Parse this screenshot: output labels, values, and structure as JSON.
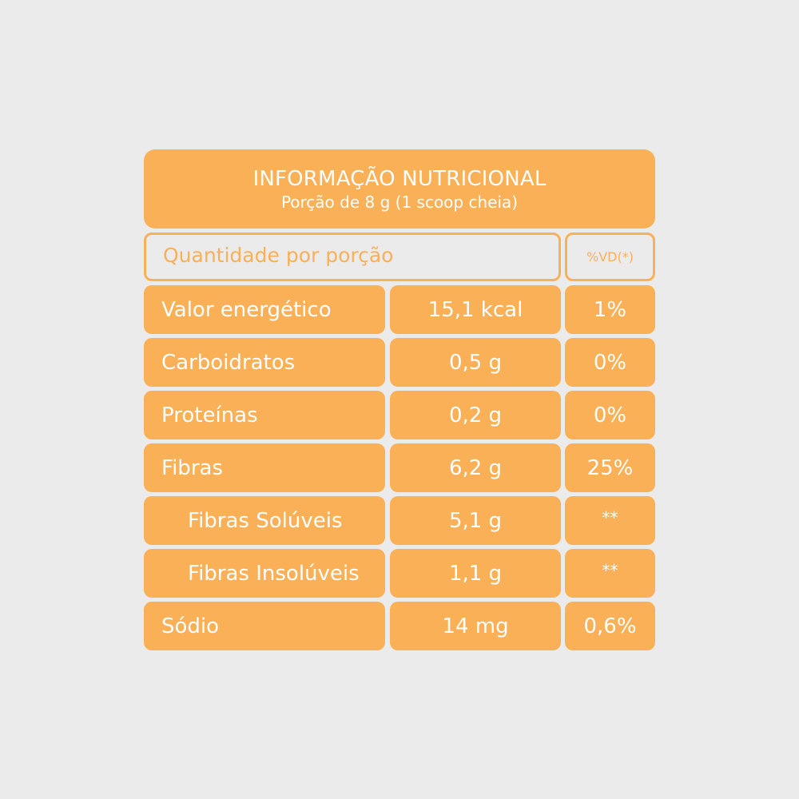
{
  "header": {
    "title": "INFORMAÇÃO NUTRICIONAL",
    "subtitle": "Porção de 8 g (1 scoop cheia)"
  },
  "columns": {
    "quantity": "Quantidade por porção",
    "daily_value": "%VD(*)"
  },
  "rows": [
    {
      "name": "Valor energético",
      "amount": "15,1 kcal",
      "dv": "1%"
    },
    {
      "name": "Carboidratos",
      "amount": "0,5 g",
      "dv": "0%"
    },
    {
      "name": "Proteínas",
      "amount": "0,2 g",
      "dv": "0%"
    },
    {
      "name": "Fibras",
      "amount": "6,2 g",
      "dv": "25%"
    },
    {
      "name": "Fibras Solúveis",
      "amount": "5,1 g",
      "dv": "**"
    },
    {
      "name": "Fibras Insolúveis",
      "amount": "1,1 g",
      "dv": "**"
    },
    {
      "name": "Sódio",
      "amount": "14 mg",
      "dv": "0,6%"
    }
  ],
  "colors": {
    "background": "#ebebeb",
    "accent": "#f9b056",
    "text_on_accent": "#ffffff"
  }
}
